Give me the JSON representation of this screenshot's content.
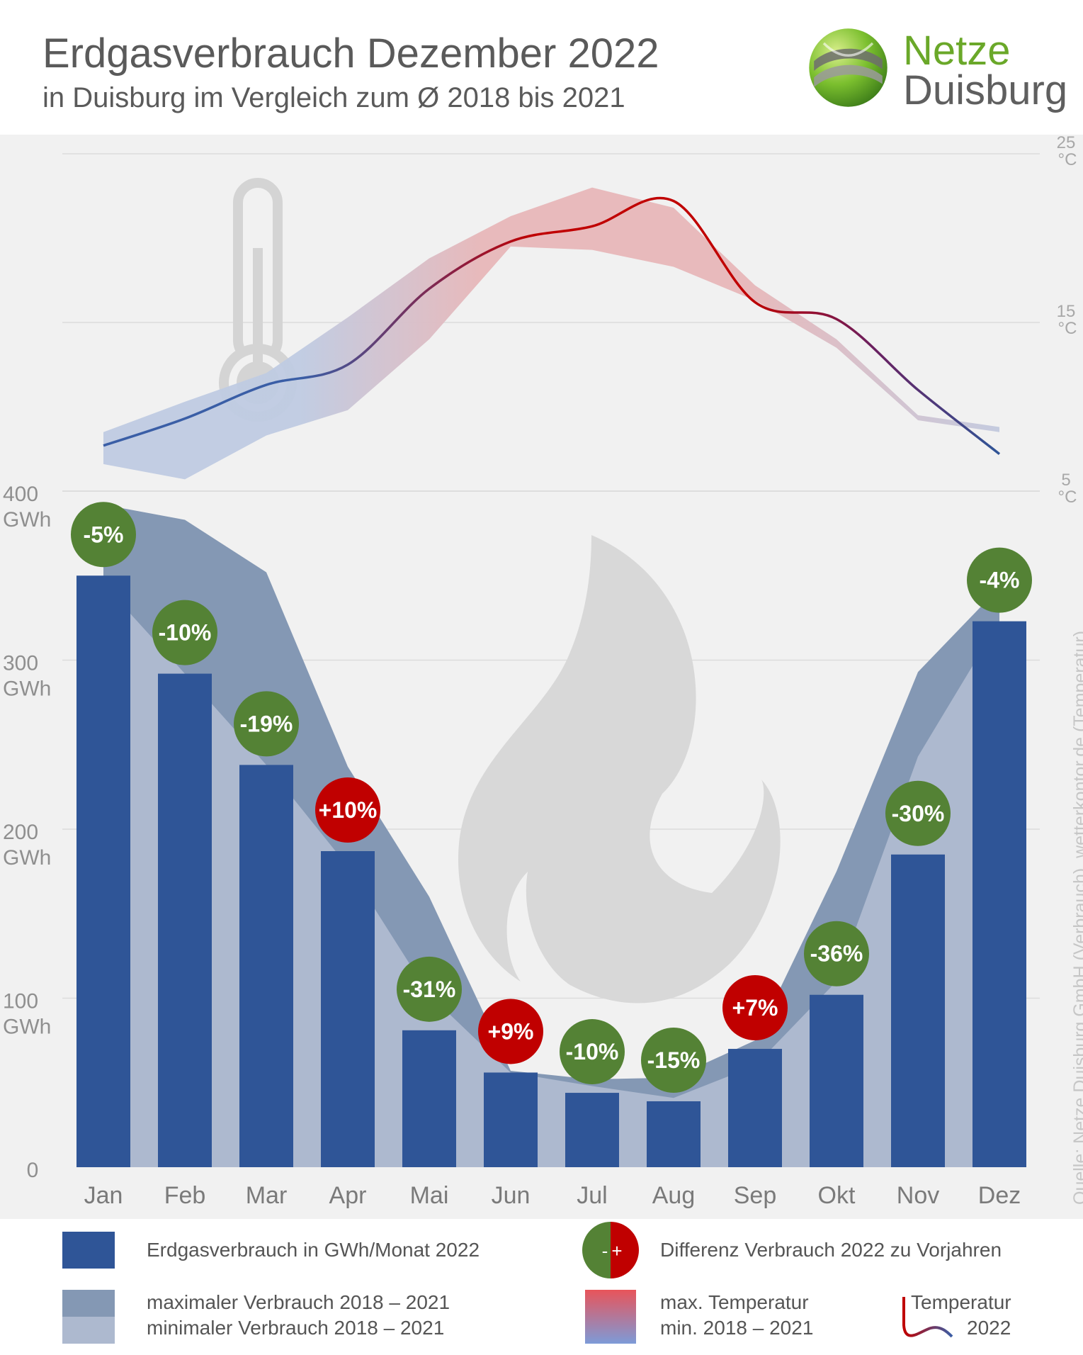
{
  "header": {
    "title": "Erdgasverbrauch Dezember 2022",
    "subtitle": "in Duisburg im Vergleich zum Ø 2018 bis 2021"
  },
  "logo": {
    "line1": "Netze",
    "line2": "Duisburg"
  },
  "colors": {
    "bar": "#2f5597",
    "band_max": "#8498b4",
    "band_min": "#adb9cf",
    "badge_negative": "#548235",
    "badge_positive": "#c00000",
    "temp_cold": "#3a5ea6",
    "temp_warm": "#c00000",
    "band_temp_cold": "#bfcbe2",
    "band_temp_warm": "#e7b7b9"
  },
  "chart_data": {
    "type": "bar",
    "title": "Erdgasverbrauch Dezember 2022",
    "subtitle": "in Duisburg im Vergleich zum Ø 2018 bis 2021",
    "categories": [
      "Jan",
      "Feb",
      "Mar",
      "Apr",
      "Mai",
      "Jun",
      "Jul",
      "Aug",
      "Sep",
      "Okt",
      "Nov",
      "Dez"
    ],
    "yunit": "GWh",
    "ylim": [
      0,
      400
    ],
    "yticks": [
      "0",
      "100",
      "200",
      "300",
      "400"
    ],
    "series": [
      {
        "name": "Erdgasverbrauch in GWh/Monat 2022",
        "values": [
          350,
          292,
          238,
          187,
          81,
          56,
          44,
          39,
          70,
          102,
          185,
          323
        ]
      },
      {
        "name": "maximaler Verbrauch 2018 – 2021",
        "values": [
          392,
          383,
          352,
          237,
          160,
          57,
          52,
          53,
          75,
          175,
          293,
          343
        ]
      },
      {
        "name": "minimaler Verbrauch 2018 – 2021",
        "values": [
          345,
          292,
          238,
          178,
          102,
          56,
          48,
          41,
          60,
          110,
          243,
          323
        ]
      }
    ],
    "differences": [
      "-5%",
      "-10%",
      "-19%",
      "+10%",
      "-31%",
      "+9%",
      "-10%",
      "-15%",
      "+7%",
      "-36%",
      "-30%",
      "-4%"
    ],
    "temperature": {
      "unit": "°C",
      "ylim": [
        5,
        25
      ],
      "yticks": [
        "5",
        "15",
        "25"
      ],
      "series": [
        {
          "name": "max. Temperatur 2018 – 2021",
          "values": [
            8.5,
            10.3,
            12.0,
            15.3,
            18.8,
            21.3,
            23.0,
            21.8,
            17.2,
            14.0,
            9.5,
            8.8
          ]
        },
        {
          "name": "min. Temperatur 2018 – 2021",
          "values": [
            6.6,
            5.7,
            8.3,
            9.8,
            14.0,
            19.5,
            19.3,
            18.3,
            16.3,
            13.5,
            9.2,
            8.5
          ]
        },
        {
          "name": "Temperatur 2022",
          "values": [
            7.7,
            9.3,
            11.3,
            12.5,
            17.0,
            19.8,
            20.7,
            22.2,
            16.2,
            15.2,
            11.0,
            7.2
          ]
        }
      ]
    }
  },
  "legend": {
    "bar_label": "Erdgasverbrauch in GWh/Monat 2022",
    "max_label": "maximaler Verbrauch 2018 – 2021",
    "min_label": "minimaler  Verbrauch 2018 – 2021",
    "diff_label": "Differenz Verbrauch 2022 zu Vorjahren",
    "diff_minus": "-",
    "diff_plus": "+",
    "temp_max_label": "max. Temperatur",
    "temp_min_label": "min.   2018 – 2021",
    "temp_line_label": "Temperatur",
    "temp_line_year": "2022"
  },
  "source": "Quelle: Netze Duisburg GmbH (Verbrauch), wetterkontor.de (Temperatur)"
}
